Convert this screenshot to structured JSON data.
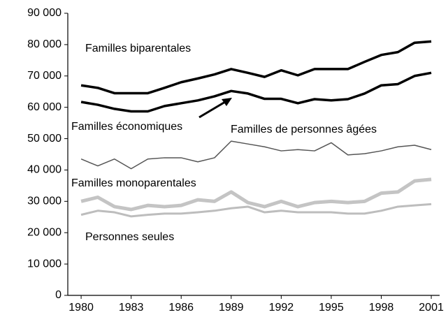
{
  "chart_data": {
    "type": "line",
    "x": [
      1980,
      1981,
      1982,
      1983,
      1984,
      1985,
      1986,
      1987,
      1988,
      1989,
      1990,
      1991,
      1992,
      1993,
      1994,
      1995,
      1996,
      1997,
      1998,
      1999,
      2000,
      2001
    ],
    "series": [
      {
        "name": "Familles biparentales",
        "color": "#000000",
        "values": [
          67000,
          66200,
          64500,
          64500,
          64500,
          66200,
          68000,
          69200,
          70500,
          72200,
          71000,
          69700,
          71800,
          70200,
          72200,
          72200,
          72200,
          74500,
          76700,
          77600,
          80600,
          81000
        ]
      },
      {
        "name": "Familles économiques",
        "color": "#000000",
        "values": [
          61700,
          60800,
          59500,
          58700,
          58700,
          60400,
          61300,
          62200,
          63500,
          65200,
          64400,
          62700,
          62700,
          61300,
          62600,
          62200,
          62600,
          64400,
          67000,
          67400,
          70000,
          71000
        ]
      },
      {
        "name": "Familles de personnes âgées",
        "color": "#555555",
        "values": [
          43500,
          41300,
          43500,
          40400,
          43500,
          43900,
          43900,
          42600,
          43900,
          49200,
          48300,
          47400,
          46100,
          46500,
          46100,
          48700,
          44800,
          45200,
          46100,
          47400,
          47900,
          46500
        ]
      },
      {
        "name": "Familles monoparentales",
        "color": "#c4c4c4",
        "values": [
          30000,
          31300,
          28300,
          27400,
          28700,
          28300,
          28700,
          30500,
          30000,
          33000,
          29600,
          28300,
          30000,
          28300,
          29600,
          30000,
          29600,
          30000,
          32600,
          33000,
          36500,
          37000
        ]
      },
      {
        "name": "Personnes seules",
        "color": "#bdbdbd",
        "values": [
          25700,
          27000,
          26500,
          25200,
          25700,
          26100,
          26100,
          26500,
          27000,
          27800,
          28300,
          26500,
          27000,
          26500,
          26500,
          26500,
          26100,
          26100,
          27000,
          28300,
          28700,
          29100
        ]
      }
    ],
    "xlim": [
      1979.2,
      2001.5
    ],
    "xticks": [
      1980,
      1983,
      1986,
      1989,
      1992,
      1995,
      1998,
      2001
    ],
    "ylim": [
      0,
      90000
    ],
    "yticks": [
      0,
      {
        "value": 10000,
        "label": "10 000"
      },
      {
        "value": 20000,
        "label": "20 000"
      },
      {
        "value": 30000,
        "label": "30 000"
      },
      {
        "value": 40000,
        "label": "40 000"
      },
      {
        "value": 50000,
        "label": "50 000"
      },
      {
        "value": 60000,
        "label": "60 000"
      },
      {
        "value": 70000,
        "label": "70 000"
      },
      {
        "value": 80000,
        "label": "80 000"
      },
      {
        "value": 90000,
        "label": "90 000"
      }
    ],
    "grid": false
  }
}
